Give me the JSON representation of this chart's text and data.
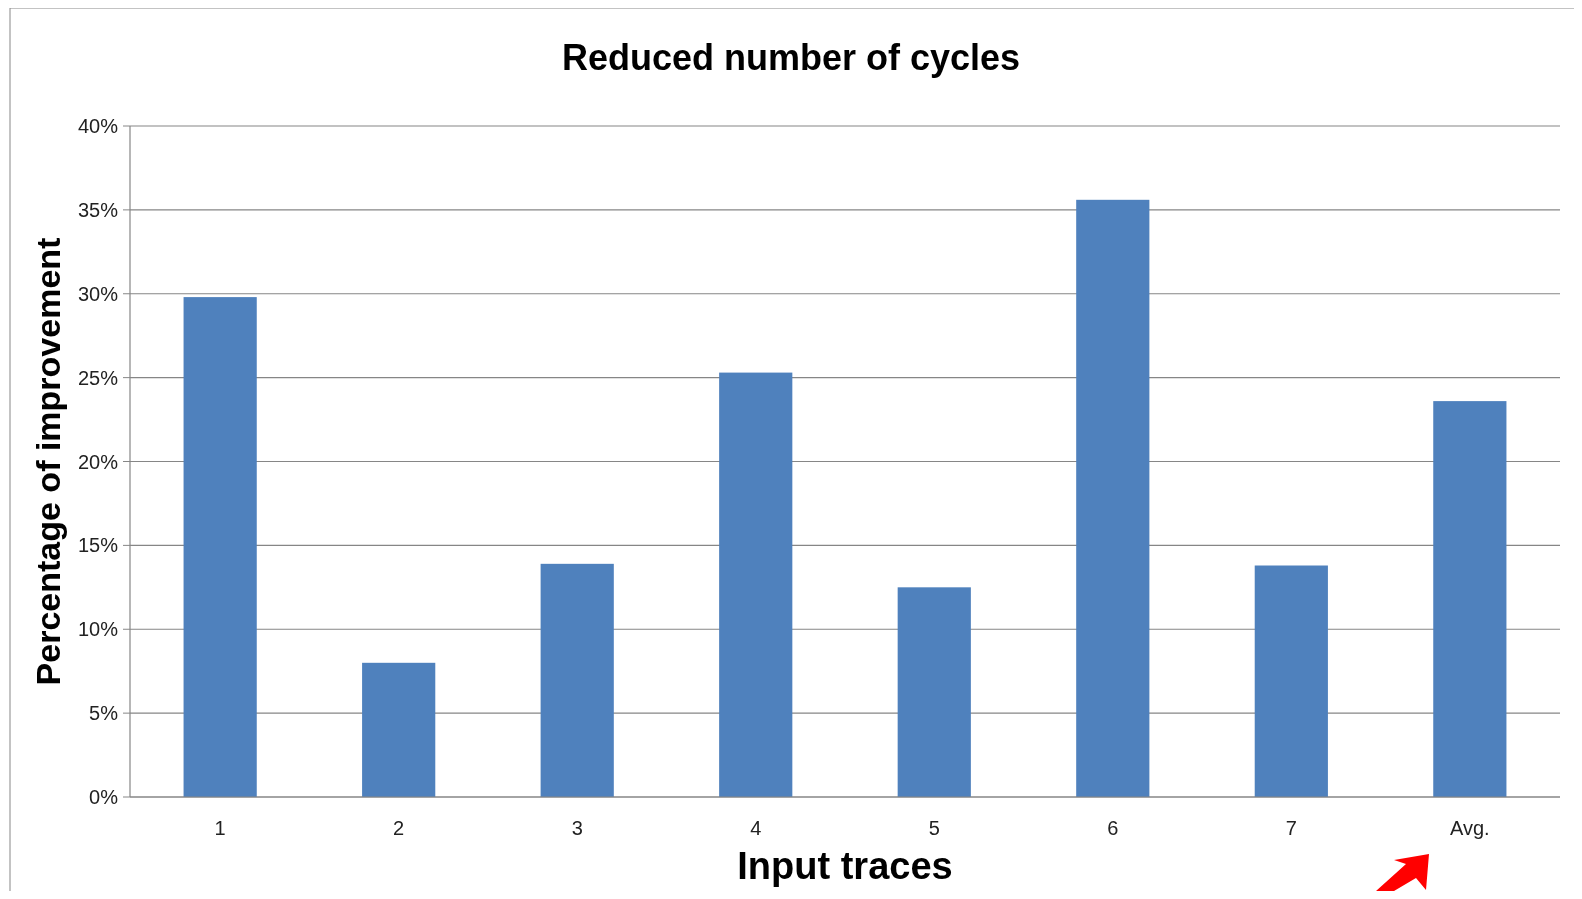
{
  "chart_data": {
    "type": "bar",
    "title": "Reduced number of cycles",
    "xlabel": "Input traces",
    "ylabel": "Percentage of improvement",
    "categories": [
      "1",
      "2",
      "3",
      "4",
      "5",
      "6",
      "7",
      "Avg."
    ],
    "values": [
      29.8,
      8.0,
      13.9,
      25.3,
      12.5,
      35.6,
      13.8,
      23.6
    ],
    "color": "#4f81bd",
    "ylim": [
      0,
      40
    ],
    "yticks": [
      {
        "value": 0,
        "label": "0%"
      },
      {
        "value": 5,
        "label": "5%"
      },
      {
        "value": 10,
        "label": "10%"
      },
      {
        "value": 15,
        "label": "15%"
      },
      {
        "value": 20,
        "label": "20%"
      },
      {
        "value": 25,
        "label": "25%"
      },
      {
        "value": 30,
        "label": "30%"
      },
      {
        "value": 35,
        "label": "35%"
      },
      {
        "value": 40,
        "label": "40%"
      }
    ],
    "grid": "y"
  }
}
